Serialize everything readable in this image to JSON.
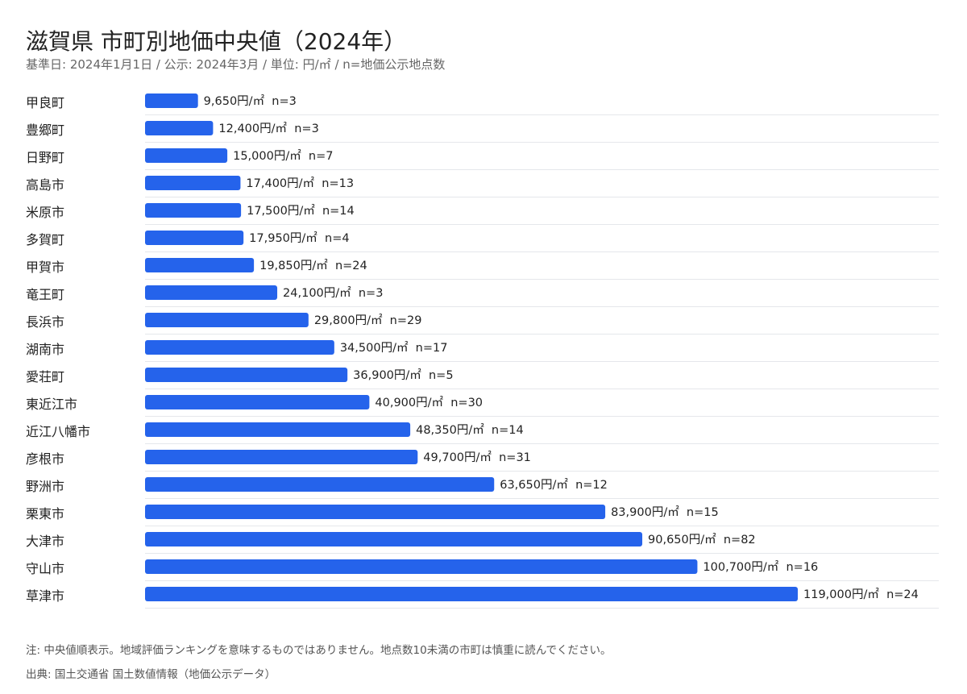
{
  "header": {
    "title": "滋賀県 市町別地価中央値（2024年）",
    "subtitle": "基準日: 2024年1月1日 / 公示: 2024年3月 / 単位: 円/㎡ / n=地価公示地点数"
  },
  "footer": {
    "note": "注: 中央値順表示。地域評価ランキングを意味するものではありません。地点数10未満の市町は慎重に読んでください。",
    "source": "出典: 国土交通省 国土数値情報（地価公示データ）"
  },
  "colors": {
    "bar": "#2563eb",
    "grid": "#e5e7eb"
  },
  "chart_data": {
    "type": "bar",
    "orientation": "horizontal",
    "unit": "円/㎡",
    "categories": [
      "甲良町",
      "豊郷町",
      "日野町",
      "高島市",
      "米原市",
      "多賀町",
      "甲賀市",
      "竜王町",
      "長浜市",
      "湖南市",
      "愛荘町",
      "東近江市",
      "近江八幡市",
      "彦根市",
      "野洲市",
      "栗東市",
      "大津市",
      "守山市",
      "草津市"
    ],
    "values": [
      9650,
      12400,
      15000,
      17400,
      17500,
      17950,
      19850,
      24100,
      29800,
      34500,
      36900,
      40900,
      48350,
      49700,
      63650,
      83900,
      90650,
      100700,
      119000
    ],
    "n": [
      3,
      3,
      7,
      13,
      14,
      4,
      24,
      3,
      29,
      17,
      5,
      30,
      14,
      31,
      12,
      15,
      82,
      16,
      24
    ],
    "data_labels": [
      "9,650円/㎡  n=3",
      "12,400円/㎡  n=3",
      "15,000円/㎡  n=7",
      "17,400円/㎡  n=13",
      "17,500円/㎡  n=14",
      "17,950円/㎡  n=4",
      "19,850円/㎡  n=24",
      "24,100円/㎡  n=3",
      "29,800円/㎡  n=29",
      "34,500円/㎡  n=17",
      "36,900円/㎡  n=5",
      "40,900円/㎡  n=30",
      "48,350円/㎡  n=14",
      "49,700円/㎡  n=31",
      "63,650円/㎡  n=12",
      "83,900円/㎡  n=15",
      "90,650円/㎡  n=82",
      "100,700円/㎡  n=16",
      "119,000円/㎡  n=24"
    ],
    "xlim": [
      0,
      132000
    ],
    "grid": "horizontal separators",
    "legend": "none"
  }
}
